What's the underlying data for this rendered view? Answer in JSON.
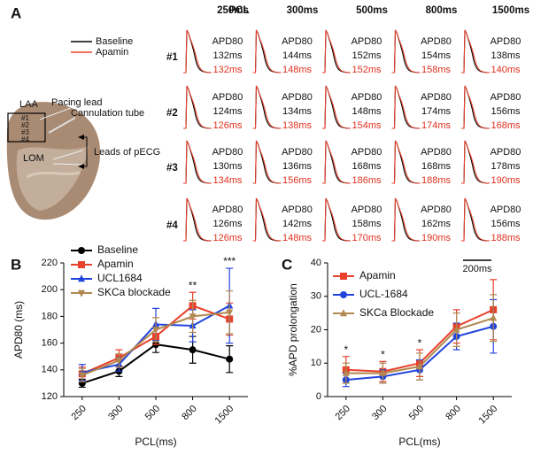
{
  "panel_a": {
    "label": "A",
    "pcl_label": "PCL",
    "pcl": [
      "250ms",
      "300ms",
      "500ms",
      "800ms",
      "1500ms"
    ],
    "legend": [
      "Baseline",
      "Apamin"
    ],
    "rows": [
      {
        "label": "#1",
        "cells": [
          {
            "metric": "APD80",
            "baseline": "132ms",
            "apamin": "132ms"
          },
          {
            "metric": "APD80",
            "baseline": "144ms",
            "apamin": "148ms"
          },
          {
            "metric": "APD80",
            "baseline": "152ms",
            "apamin": "152ms"
          },
          {
            "metric": "APD80",
            "baseline": "154ms",
            "apamin": "158ms"
          },
          {
            "metric": "APD80",
            "baseline": "138ms",
            "apamin": "140ms"
          }
        ]
      },
      {
        "label": "#2",
        "cells": [
          {
            "metric": "APD80",
            "baseline": "124ms",
            "apamin": "126ms"
          },
          {
            "metric": "APD80",
            "baseline": "134ms",
            "apamin": "138ms"
          },
          {
            "metric": "APD80",
            "baseline": "148ms",
            "apamin": "154ms"
          },
          {
            "metric": "APD80",
            "baseline": "174ms",
            "apamin": "174ms"
          },
          {
            "metric": "APD80",
            "baseline": "156ms",
            "apamin": "168ms"
          }
        ]
      },
      {
        "label": "#3",
        "cells": [
          {
            "metric": "APD80",
            "baseline": "130ms",
            "apamin": "134ms"
          },
          {
            "metric": "APD80",
            "baseline": "136ms",
            "apamin": "156ms"
          },
          {
            "metric": "APD80",
            "baseline": "168ms",
            "apamin": "186ms"
          },
          {
            "metric": "APD80",
            "baseline": "168ms",
            "apamin": "188ms"
          },
          {
            "metric": "APD80",
            "baseline": "178ms",
            "apamin": "190ms"
          }
        ]
      },
      {
        "label": "#4",
        "cells": [
          {
            "metric": "APD80",
            "baseline": "126ms",
            "apamin": "126ms"
          },
          {
            "metric": "APD80",
            "baseline": "142ms",
            "apamin": "148ms"
          },
          {
            "metric": "APD80",
            "baseline": "158ms",
            "apamin": "170ms"
          },
          {
            "metric": "APD80",
            "baseline": "162ms",
            "apamin": "190ms"
          },
          {
            "metric": "APD80",
            "baseline": "156ms",
            "apamin": "188ms"
          }
        ]
      }
    ],
    "photo": {
      "laa": "LAA",
      "sites": [
        "#1",
        "#2",
        "#3",
        "#4"
      ],
      "pacing_lead": "Pacing lead",
      "cannulation_tube": "Cannulation tube",
      "lom": "LOM",
      "leads": "Leads of pECG"
    },
    "scale_bar": "200ms"
  },
  "chart_data": [
    {
      "type": "line",
      "panel_label": "B",
      "ylabel": "APD80 (ms)",
      "xlabel": "PCL(ms)",
      "categories": [
        "250",
        "300",
        "500",
        "800",
        "1500"
      ],
      "ylim": [
        120,
        220
      ],
      "yticks": [
        120,
        140,
        160,
        180,
        200,
        220
      ],
      "series": [
        {
          "name": "Baseline",
          "color": "#000000",
          "marker": "circle",
          "values": [
            130,
            139,
            159,
            155,
            148
          ],
          "errors": [
            3,
            4,
            6,
            10,
            10
          ]
        },
        {
          "name": "Apamin",
          "color": "#e8412c",
          "marker": "square",
          "values": [
            137,
            149,
            165,
            188,
            178
          ],
          "errors": [
            5,
            6,
            6,
            10,
            12
          ]
        },
        {
          "name": "UCL1684",
          "color": "#2244dd",
          "marker": "triangle",
          "values": [
            138,
            144,
            174,
            173,
            188
          ],
          "errors": [
            6,
            5,
            12,
            12,
            28
          ]
        },
        {
          "name": "SKCa blockade",
          "color": "#b08850",
          "marker": "triangle-down",
          "values": [
            136,
            147,
            170,
            180,
            183
          ],
          "errors": [
            5,
            5,
            9,
            12,
            16
          ]
        }
      ],
      "annotations": [
        {
          "text": "**",
          "x": "800"
        },
        {
          "text": "***",
          "x": "1500"
        }
      ]
    },
    {
      "type": "line",
      "panel_label": "C",
      "ylabel": "%APD prolongation",
      "xlabel": "PCL(ms)",
      "categories": [
        "250",
        "300",
        "500",
        "800",
        "1500"
      ],
      "ylim": [
        0,
        40
      ],
      "yticks": [
        0,
        10,
        20,
        30,
        40
      ],
      "series": [
        {
          "name": "Apamin",
          "color": "#e8412c",
          "marker": "square",
          "values": [
            8,
            7.5,
            10,
            21,
            26
          ],
          "errors": [
            4,
            3,
            4,
            5,
            9
          ]
        },
        {
          "name": "UCL-1684",
          "color": "#2244dd",
          "marker": "circle",
          "values": [
            5,
            6,
            8,
            18,
            21
          ],
          "errors": [
            2,
            2,
            3,
            4,
            8
          ]
        },
        {
          "name": "SKCa Blockade",
          "color": "#b08850",
          "marker": "triangle",
          "values": [
            7,
            7,
            9,
            20,
            23.5
          ],
          "errors": [
            3,
            3,
            4,
            5,
            7
          ]
        }
      ],
      "annotations": [
        {
          "text": "*",
          "x": "250"
        },
        {
          "text": "*",
          "x": "300"
        },
        {
          "text": "*",
          "x": "500"
        }
      ]
    }
  ]
}
